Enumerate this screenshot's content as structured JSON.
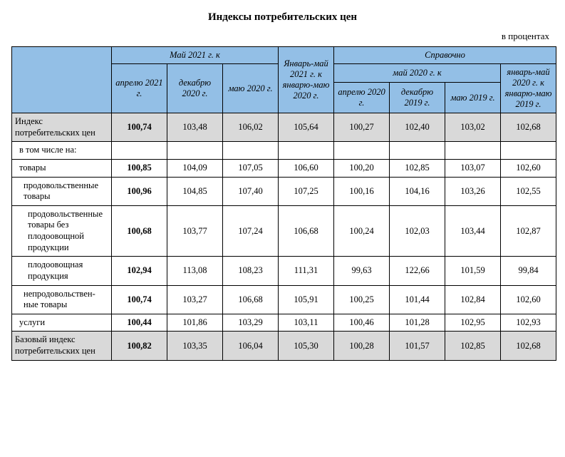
{
  "title": "Индексы потребительских цен",
  "unit_note": "в процентах",
  "colors": {
    "header_bg": "#93bfe6",
    "shaded_row_bg": "#d9d9d9",
    "border": "#000000",
    "text": "#000000",
    "background": "#ffffff"
  },
  "fonts": {
    "family": "Times New Roman",
    "title_size_pt": 12,
    "body_size_pt": 10
  },
  "table": {
    "header": {
      "group_may2021": "Май 2021 г. к",
      "group_jan_may2021": "Январь-май 2021 г. к январю-маю 2020 г.",
      "group_ref": "Справочно",
      "group_may2020": "май 2020 г. к",
      "group_jan_may2020": "январь-май 2020 г. к январю-маю 2019 г.",
      "cols": [
        "апрелю 2021 г.",
        "декабрю 2020 г.",
        "маю 2020 г.",
        "апрелю 2020 г.",
        "декабрю 2019 г.",
        "маю 2019 г."
      ]
    },
    "first_col_bold": true,
    "rows": [
      {
        "label": "Индекс потребительских цен",
        "indent": 0,
        "shaded": true,
        "values": [
          "100,74",
          "103,48",
          "106,02",
          "105,64",
          "100,27",
          "102,40",
          "103,02",
          "102,68"
        ]
      },
      {
        "label": "в том числе на:",
        "indent": 1,
        "shaded": false,
        "values": null
      },
      {
        "label": "товары",
        "indent": 1,
        "shaded": false,
        "values": [
          "100,85",
          "104,09",
          "107,05",
          "106,60",
          "100,20",
          "102,85",
          "103,07",
          "102,60"
        ]
      },
      {
        "label": "продовольственные товары",
        "indent": 2,
        "shaded": false,
        "values": [
          "100,96",
          "104,85",
          "107,40",
          "107,25",
          "100,16",
          "104,16",
          "103,26",
          "102,55"
        ]
      },
      {
        "label": "продовольственные товары без плодоовощной продукции",
        "indent": 3,
        "shaded": false,
        "values": [
          "100,68",
          "103,77",
          "107,24",
          "106,68",
          "100,24",
          "102,03",
          "103,44",
          "102,87"
        ]
      },
      {
        "label": "плодоовощная продукция",
        "indent": 3,
        "shaded": false,
        "values": [
          "102,94",
          "113,08",
          "108,23",
          "111,31",
          "99,63",
          "122,66",
          "101,59",
          "99,84"
        ]
      },
      {
        "label": "непродовольствен-ные товары",
        "indent": 2,
        "shaded": false,
        "values": [
          "100,74",
          "103,27",
          "106,68",
          "105,91",
          "100,25",
          "101,44",
          "102,84",
          "102,60"
        ]
      },
      {
        "label": "услуги",
        "indent": 1,
        "shaded": false,
        "values": [
          "100,44",
          "101,86",
          "103,29",
          "103,11",
          "100,46",
          "101,28",
          "102,95",
          "102,93"
        ]
      },
      {
        "label": "Базовый индекс потребительских цен",
        "indent": 0,
        "shaded": true,
        "values": [
          "100,82",
          "103,35",
          "106,04",
          "105,30",
          "100,28",
          "101,57",
          "102,85",
          "102,68"
        ]
      }
    ]
  }
}
